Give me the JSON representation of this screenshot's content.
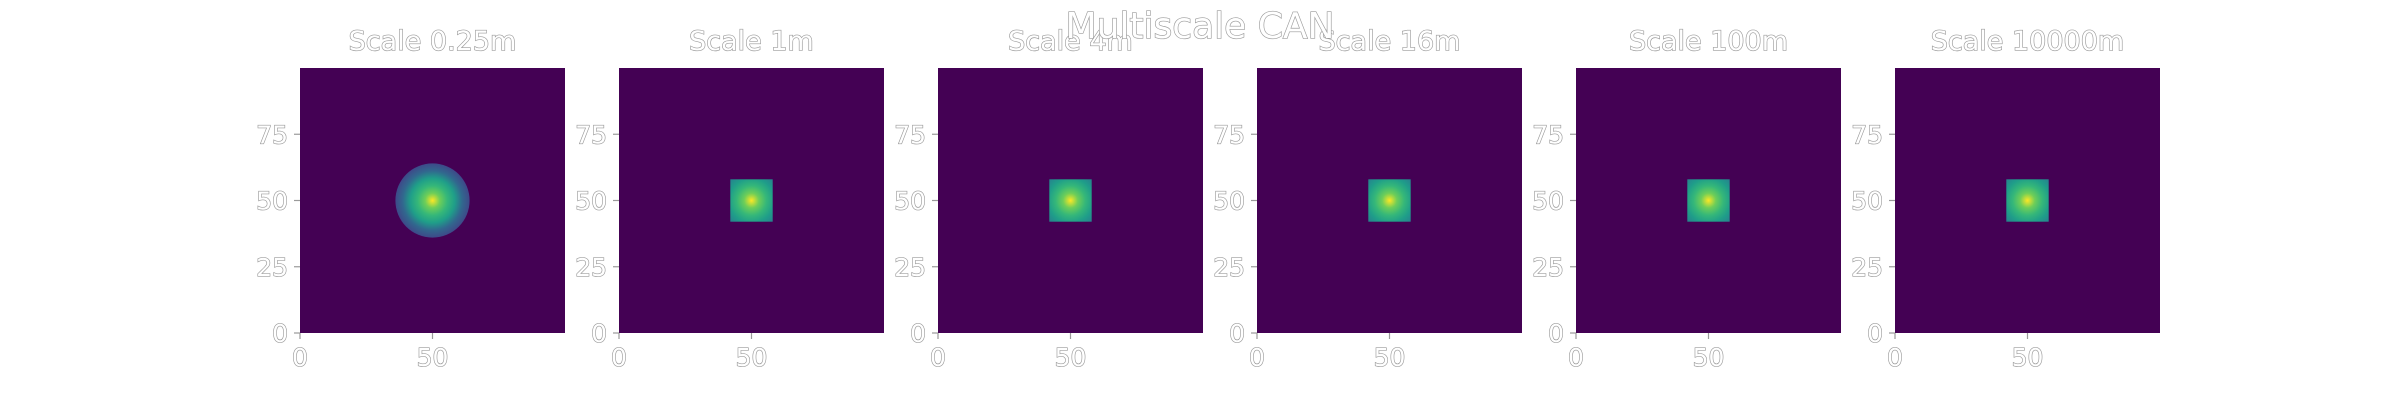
{
  "figure": {
    "title": "Multiscale CAN"
  },
  "colors": {
    "background_field": "#440154",
    "colormap": "viridis",
    "text_fill": "#ffffff",
    "text_outline": "#9a9a9a"
  },
  "chart_data": [
    {
      "type": "heatmap",
      "title": "Scale 0.25m",
      "xlim": [
        0,
        100
      ],
      "ylim": [
        0,
        100
      ],
      "xticks": [
        0,
        50
      ],
      "yticks": [
        0,
        25,
        50,
        75
      ],
      "grid": false,
      "blob": {
        "center": [
          50,
          50
        ],
        "shape": "circle",
        "half_width": 14,
        "peak": 1.0
      }
    },
    {
      "type": "heatmap",
      "title": "Scale 1m",
      "xlim": [
        0,
        100
      ],
      "ylim": [
        0,
        100
      ],
      "xticks": [
        0,
        50
      ],
      "yticks": [
        0,
        25,
        50,
        75
      ],
      "grid": false,
      "blob": {
        "center": [
          50,
          50
        ],
        "shape": "square",
        "half_width": 8,
        "peak": 1.0
      }
    },
    {
      "type": "heatmap",
      "title": "Scale 4m",
      "xlim": [
        0,
        100
      ],
      "ylim": [
        0,
        100
      ],
      "xticks": [
        0,
        50
      ],
      "yticks": [
        0,
        25,
        50,
        75
      ],
      "grid": false,
      "blob": {
        "center": [
          50,
          50
        ],
        "shape": "square",
        "half_width": 8,
        "peak": 1.0
      }
    },
    {
      "type": "heatmap",
      "title": "Scale 16m",
      "xlim": [
        0,
        100
      ],
      "ylim": [
        0,
        100
      ],
      "xticks": [
        0,
        50
      ],
      "yticks": [
        0,
        25,
        50,
        75
      ],
      "grid": false,
      "blob": {
        "center": [
          50,
          50
        ],
        "shape": "square",
        "half_width": 8,
        "peak": 1.0
      }
    },
    {
      "type": "heatmap",
      "title": "Scale 100m",
      "xlim": [
        0,
        100
      ],
      "ylim": [
        0,
        100
      ],
      "xticks": [
        0,
        50
      ],
      "yticks": [
        0,
        25,
        50,
        75
      ],
      "grid": false,
      "blob": {
        "center": [
          50,
          50
        ],
        "shape": "square",
        "half_width": 8,
        "peak": 1.0
      }
    },
    {
      "type": "heatmap",
      "title": "Scale 10000m",
      "xlim": [
        0,
        100
      ],
      "ylim": [
        0,
        100
      ],
      "xticks": [
        0,
        50
      ],
      "yticks": [
        0,
        25,
        50,
        75
      ],
      "grid": false,
      "blob": {
        "center": [
          50,
          50
        ],
        "shape": "square",
        "half_width": 8,
        "peak": 1.0
      }
    }
  ]
}
